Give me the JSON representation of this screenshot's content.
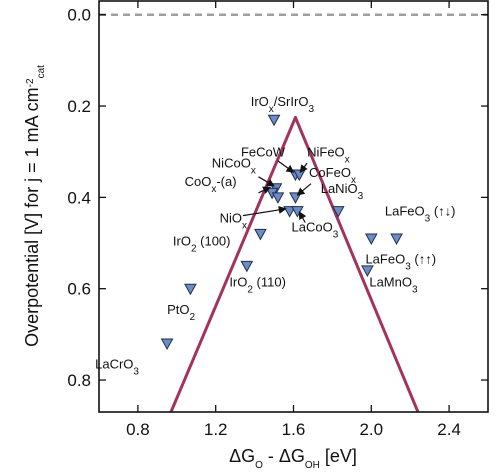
{
  "chart_data": {
    "type": "scatter",
    "title": "",
    "xlabel": "ΔG_O - ΔG_OH [eV]",
    "ylabel": "Overpotential [V] for j = 1 mA cm^-2_cat",
    "xlim": [
      0.6,
      2.6
    ],
    "ylim": [
      0.87,
      -0.03
    ],
    "y_inverted": true,
    "grid": false,
    "x_ticks": [
      0.8,
      1.2,
      1.6,
      2.0,
      2.4
    ],
    "x_tick_labels": [
      "0.8",
      "1.2",
      "1.6",
      "2.0",
      "2.4"
    ],
    "y_ticks": [
      0.0,
      0.2,
      0.4,
      0.6,
      0.8
    ],
    "y_tick_labels": [
      "0.0",
      "0.2",
      "0.4",
      "0.6",
      "0.8"
    ],
    "reference_line": {
      "y": 0.0,
      "style": "dashed",
      "color": "#a0a0a0"
    },
    "volcano": {
      "color": "#a3325e",
      "apex": {
        "x": 1.61,
        "y": 0.225
      },
      "left_end": {
        "x": 0.97,
        "y": 0.87
      },
      "right_end": {
        "x": 2.24,
        "y": 0.87
      }
    },
    "marker": {
      "shape": "triangle-down",
      "fill": "#6b8cc6",
      "stroke": "#1f2d4a"
    },
    "points": [
      {
        "x": 1.5,
        "y": 0.23
      },
      {
        "x": 1.61,
        "y": 0.35
      },
      {
        "x": 1.63,
        "y": 0.35
      },
      {
        "x": 1.51,
        "y": 0.38
      },
      {
        "x": 1.49,
        "y": 0.39
      },
      {
        "x": 1.52,
        "y": 0.4
      },
      {
        "x": 1.61,
        "y": 0.4
      },
      {
        "x": 1.58,
        "y": 0.43
      },
      {
        "x": 1.62,
        "y": 0.43
      },
      {
        "x": 1.83,
        "y": 0.43
      },
      {
        "x": 1.43,
        "y": 0.48
      },
      {
        "x": 2.0,
        "y": 0.49
      },
      {
        "x": 2.13,
        "y": 0.49
      },
      {
        "x": 1.36,
        "y": 0.55
      },
      {
        "x": 1.98,
        "y": 0.56
      },
      {
        "x": 1.07,
        "y": 0.6
      },
      {
        "x": 0.95,
        "y": 0.72
      }
    ],
    "annotations": [
      {
        "id": "irox",
        "parts": [
          [
            "IrO",
            ""
          ],
          [
            "x",
            "sub"
          ],
          [
            "/SrIrO",
            ""
          ],
          [
            "3",
            "sub"
          ]
        ],
        "x": 1.38,
        "y": 0.2
      },
      {
        "id": "fecow",
        "parts": [
          [
            "FeCoW",
            ""
          ]
        ],
        "x": 1.33,
        "y": 0.31
      },
      {
        "id": "nifeox",
        "parts": [
          [
            "NiFeO",
            ""
          ],
          [
            "x",
            "sub"
          ]
        ],
        "x": 1.67,
        "y": 0.31
      },
      {
        "id": "nicoox",
        "parts": [
          [
            "NiCoO",
            ""
          ],
          [
            "x",
            "sub"
          ]
        ],
        "x": 1.18,
        "y": 0.335
      },
      {
        "id": "cofeox",
        "parts": [
          [
            "CoFeO",
            ""
          ],
          [
            "x",
            "sub"
          ]
        ],
        "x": 1.68,
        "y": 0.355
      },
      {
        "id": "coox",
        "parts": [
          [
            "CoO",
            ""
          ],
          [
            "x",
            "sub"
          ],
          [
            "-(a)",
            ""
          ]
        ],
        "x": 1.04,
        "y": 0.375
      },
      {
        "id": "lanio3",
        "parts": [
          [
            "LaNiO",
            ""
          ],
          [
            "3",
            "sub"
          ]
        ],
        "x": 1.74,
        "y": 0.39
      },
      {
        "id": "niox",
        "parts": [
          [
            "NiO",
            ""
          ],
          [
            "x",
            "sub"
          ]
        ],
        "x": 1.22,
        "y": 0.455
      },
      {
        "id": "lafeo3_ud",
        "parts": [
          [
            "LaFeO",
            ""
          ],
          [
            "3",
            "sub"
          ],
          [
            " (↑↓)",
            ""
          ]
        ],
        "x": 2.07,
        "y": 0.44
      },
      {
        "id": "lacoo3",
        "parts": [
          [
            "LaCoO",
            ""
          ],
          [
            "3",
            "sub"
          ]
        ],
        "x": 1.59,
        "y": 0.475
      },
      {
        "id": "iro2_100",
        "parts": [
          [
            "IrO",
            ""
          ],
          [
            "2",
            "sub"
          ],
          [
            " (100)",
            ""
          ]
        ],
        "x": 0.98,
        "y": 0.505
      },
      {
        "id": "lafeo3_uu",
        "parts": [
          [
            "LaFeO",
            ""
          ],
          [
            "3",
            "sub"
          ],
          [
            " (↑↑)",
            ""
          ]
        ],
        "x": 1.97,
        "y": 0.545
      },
      {
        "id": "lamno3",
        "parts": [
          [
            "LaMnO",
            ""
          ],
          [
            "3",
            "sub"
          ]
        ],
        "x": 1.99,
        "y": 0.595
      },
      {
        "id": "iro2_110",
        "parts": [
          [
            "IrO",
            ""
          ],
          [
            "2",
            "sub"
          ],
          [
            " (110)",
            ""
          ]
        ],
        "x": 1.27,
        "y": 0.595
      },
      {
        "id": "pto2",
        "parts": [
          [
            "PtO",
            ""
          ],
          [
            "2",
            "sub"
          ]
        ],
        "x": 0.95,
        "y": 0.655
      },
      {
        "id": "lacro3",
        "parts": [
          [
            "LaCrO",
            ""
          ],
          [
            "3",
            "sub"
          ]
        ],
        "x": 0.58,
        "y": 0.775
      }
    ],
    "arrows": [
      {
        "from": [
          1.52,
          0.32
        ],
        "to": [
          1.6,
          0.345
        ]
      },
      {
        "from": [
          1.67,
          0.325
        ],
        "to": [
          1.635,
          0.345
        ]
      },
      {
        "from": [
          1.42,
          0.355
        ],
        "to": [
          1.5,
          0.375
        ]
      },
      {
        "from": [
          1.69,
          0.37
        ],
        "to": [
          1.62,
          0.395
        ]
      },
      {
        "from": [
          1.42,
          0.39
        ],
        "to": [
          1.48,
          0.378
        ]
      },
      {
        "from": [
          1.34,
          0.44
        ],
        "to": [
          1.56,
          0.425
        ]
      },
      {
        "from": [
          1.66,
          0.455
        ],
        "to": [
          1.63,
          0.432
        ]
      }
    ]
  }
}
